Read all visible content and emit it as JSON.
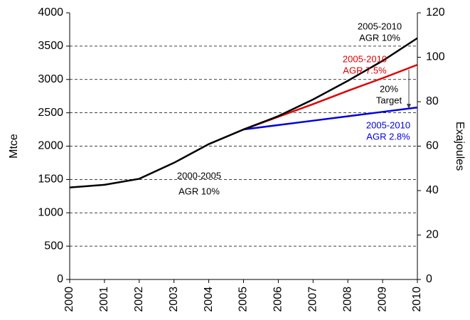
{
  "chart_data": {
    "type": "line",
    "categories": [
      "2000",
      "2001",
      "2002",
      "2003",
      "2004",
      "2005",
      "2006",
      "2007",
      "2008",
      "2009",
      "2010"
    ],
    "series": [
      {
        "color": "#000000",
        "values": [
          1380,
          1420,
          1510,
          1750,
          2030,
          2250,
          2450,
          2700,
          2980,
          3280,
          3620
        ]
      },
      {
        "color": "#e00000",
        "values": [
          null,
          null,
          null,
          null,
          null,
          2250,
          2440,
          2630,
          2830,
          3020,
          3220
        ]
      },
      {
        "color": "#0000e0",
        "values": [
          null,
          null,
          null,
          null,
          null,
          2250,
          2316,
          2382,
          2448,
          2514,
          2580
        ]
      }
    ],
    "ylabel": "Mtce",
    "y2label": "Exajoules",
    "ylim": [
      0,
      4000
    ],
    "yticks": [
      0,
      500,
      1000,
      1500,
      2000,
      2500,
      3000,
      3500,
      4000
    ],
    "y2lim": [
      0,
      120
    ],
    "y2ticks": [
      0,
      20,
      40,
      60,
      80,
      100,
      120
    ],
    "grid": true,
    "annotations": [
      {
        "lines": [
          "2005-2010",
          "AGR 10%"
        ],
        "color": "#000000"
      },
      {
        "lines": [
          "2005-2010",
          "AGR 7.5%"
        ],
        "color": "#e00000"
      },
      {
        "lines": [
          "20%",
          "Target"
        ],
        "color": "#000000"
      },
      {
        "lines": [
          "2005-2010",
          "AGR 2.8%"
        ],
        "color": "#0000e0"
      },
      {
        "lines": [
          "2000-2005",
          "AGR 10%"
        ],
        "color": "#000000"
      }
    ]
  }
}
